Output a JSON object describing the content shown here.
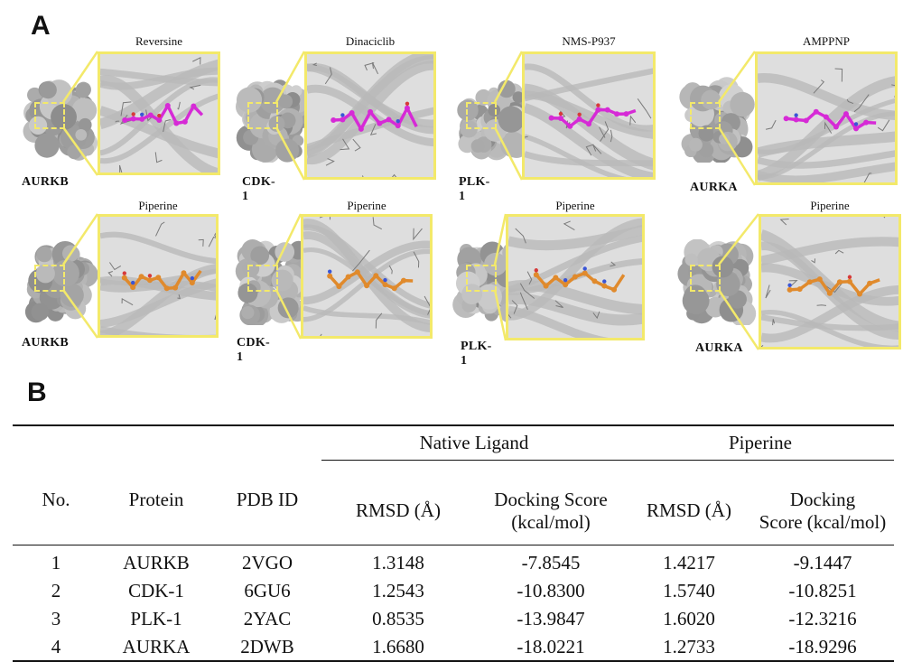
{
  "panel_a": {
    "letter": "A",
    "rows": [
      {
        "panels": [
          {
            "protein": "AURKB",
            "ligand": "Reversine",
            "ligand_color": "#d62ad6"
          },
          {
            "protein": "CDK-1",
            "ligand": "Dinaciclib",
            "ligand_color": "#d62ad6"
          },
          {
            "protein": "PLK-1",
            "ligand": "NMS-P937",
            "ligand_color": "#d62ad6"
          },
          {
            "protein": "AURKA",
            "ligand": "AMPPNP",
            "ligand_color": "#d62ad6"
          }
        ]
      },
      {
        "panels": [
          {
            "protein": "AURKB",
            "ligand": "Piperine",
            "ligand_color": "#e08a2c"
          },
          {
            "protein": "CDK-1",
            "ligand": "Piperine",
            "ligand_color": "#e08a2c"
          },
          {
            "protein": "PLK-1",
            "ligand": "Piperine",
            "ligand_color": "#e08a2c"
          },
          {
            "protein": "AURKA",
            "ligand": "Piperine",
            "ligand_color": "#e08a2c"
          }
        ]
      }
    ],
    "box_color": "#f3e96a"
  },
  "panel_b": {
    "letter": "B",
    "table": {
      "group_headers": {
        "native": "Native Ligand",
        "piperine": "Piperine"
      },
      "col_no": "No.",
      "col_protein": "Protein",
      "col_pdb": "PDB ID",
      "col_rmsd_native": "RMSD (Å)",
      "col_score_native_1": "Docking Score",
      "col_score_native_2": "(kcal/mol)",
      "col_rmsd_pip": "RMSD (Å)",
      "col_score_pip_1": "Docking",
      "col_score_pip_2": "Score (kcal/mol)",
      "rows": [
        {
          "no": "1",
          "protein": "AURKB",
          "pdb": "2VGO",
          "rmsd_native": "1.3148",
          "score_native": "-7.8545",
          "rmsd_pip": "1.4217",
          "score_pip": "-9.1447"
        },
        {
          "no": "2",
          "protein": "CDK-1",
          "pdb": "6GU6",
          "rmsd_native": "1.2543",
          "score_native": "-10.8300",
          "rmsd_pip": "1.5740",
          "score_pip": "-10.8251"
        },
        {
          "no": "3",
          "protein": "PLK-1",
          "pdb": "2YAC",
          "rmsd_native": "0.8535",
          "score_native": "-13.9847",
          "rmsd_pip": "1.6020",
          "score_pip": "-12.3216"
        },
        {
          "no": "4",
          "protein": "AURKA",
          "pdb": "2DWB",
          "rmsd_native": "1.6680",
          "score_native": "-18.0221",
          "rmsd_pip": "1.2733",
          "score_pip": "-18.9296"
        }
      ]
    }
  }
}
